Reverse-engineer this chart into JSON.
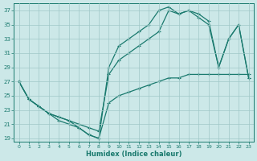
{
  "xlabel": "Humidex (Indice chaleur)",
  "background_color": "#cce8e8",
  "grid_color": "#a0c8c8",
  "line_color": "#1a7a6e",
  "xlim": [
    -0.5,
    23.5
  ],
  "ylim": [
    18.5,
    38
  ],
  "yticks": [
    19,
    21,
    23,
    25,
    27,
    29,
    31,
    33,
    35,
    37
  ],
  "xticks": [
    0,
    1,
    2,
    3,
    4,
    5,
    6,
    7,
    8,
    9,
    10,
    11,
    12,
    13,
    14,
    15,
    16,
    17,
    18,
    19,
    20,
    21,
    22,
    23
  ],
  "line1_x": [
    0,
    1,
    2,
    3,
    4,
    5,
    6,
    7,
    8,
    9,
    10,
    11,
    12,
    13,
    14,
    15,
    16,
    17,
    18,
    19,
    20,
    21,
    22,
    23
  ],
  "line1_y": [
    27,
    24.5,
    23.5,
    22.5,
    22,
    21.5,
    20.5,
    19.5,
    19,
    29,
    32,
    33,
    34,
    35,
    37,
    37.5,
    36.5,
    37,
    36.5,
    35.5,
    29,
    33,
    35,
    27.5
  ],
  "line2_x": [
    0,
    1,
    2,
    3,
    4,
    5,
    6,
    7,
    8,
    9,
    10,
    11,
    12,
    13,
    14,
    15,
    16,
    17,
    18,
    19,
    20,
    21,
    22,
    23
  ],
  "line2_y": [
    27,
    24.5,
    23.5,
    22.5,
    22,
    21.5,
    21,
    20.5,
    20,
    28,
    30,
    31,
    32,
    33,
    34,
    37,
    36.5,
    37,
    36,
    35,
    29,
    33,
    35,
    27.5
  ],
  "line3_x": [
    0,
    1,
    2,
    3,
    4,
    5,
    6,
    7,
    8,
    9,
    10,
    11,
    12,
    13,
    14,
    15,
    16,
    17,
    18,
    19,
    20,
    21,
    22,
    23
  ],
  "line3_y": [
    27,
    24.5,
    23.5,
    22.5,
    21.5,
    21,
    20.5,
    19.5,
    19,
    24,
    25,
    25.5,
    26,
    26.5,
    27,
    27.5,
    27.5,
    28,
    28,
    28,
    28,
    28,
    28,
    28
  ]
}
